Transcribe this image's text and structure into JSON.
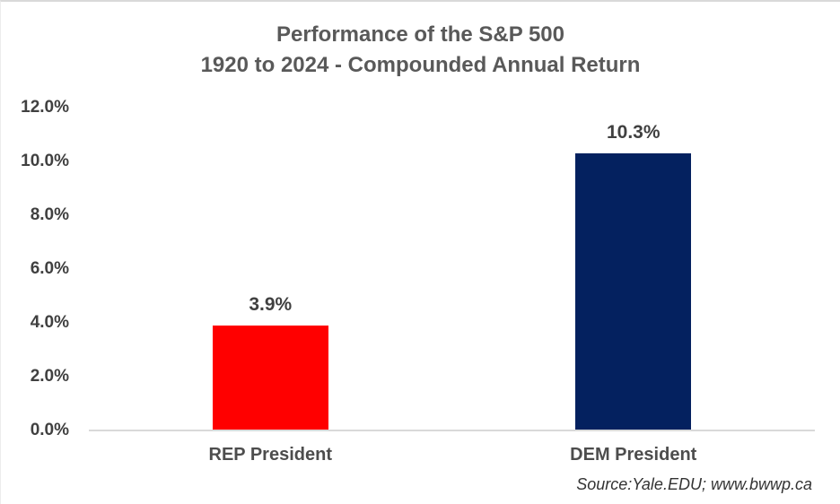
{
  "chart_data": {
    "type": "bar",
    "title": "Performance of the S&P 500",
    "subtitle": "1920 to 2024 - Compounded Annual Return",
    "categories": [
      "REP President",
      "DEM President"
    ],
    "values": [
      3.9,
      10.3
    ],
    "value_labels": [
      "3.9%",
      "10.3%"
    ],
    "bar_colors": [
      "#ff0000",
      "#04215f"
    ],
    "y_ticks": [
      "12.0%",
      "10.0%",
      "8.0%",
      "6.0%",
      "4.0%",
      "2.0%",
      "0.0%"
    ],
    "ylim": [
      0,
      12
    ],
    "grid": false,
    "legend": "none",
    "source": "Source:Yale.EDU; www.bwwp.ca"
  },
  "colors": {
    "title_text": "#595959",
    "axis_text": "#404040",
    "axis_line": "#d9d9d9",
    "rep_bar": "#ff0000",
    "dem_bar": "#04215f"
  }
}
